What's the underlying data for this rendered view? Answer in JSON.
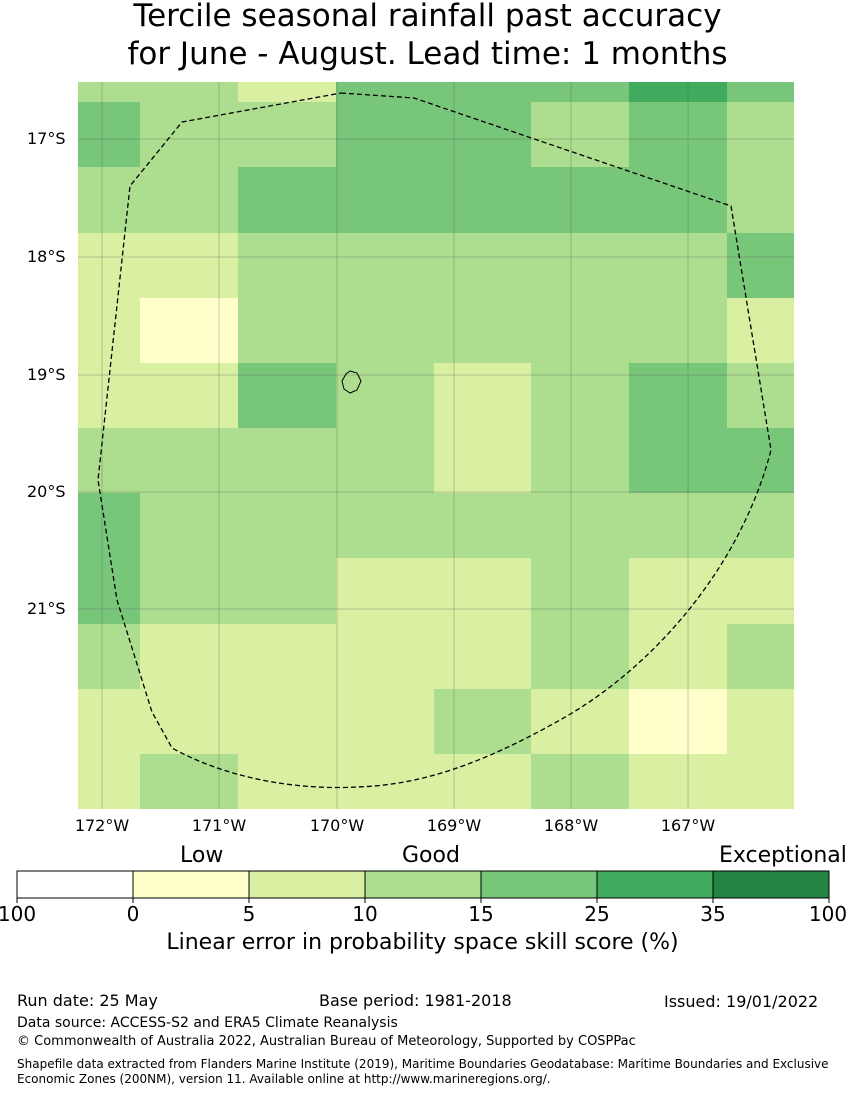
{
  "title": {
    "line1": "Tercile seasonal rainfall past accuracy",
    "line2": "for June - August. Lead time: 1 months"
  },
  "map": {
    "lat_labels": [
      "17°S",
      "18°S",
      "19°S",
      "20°S",
      "21°S"
    ],
    "lon_labels": [
      "172°W",
      "171°W",
      "170°W",
      "169°W",
      "168°W",
      "167°W"
    ],
    "grid_values": [
      [
        15,
        15,
        10,
        25,
        25,
        25,
        35,
        25
      ],
      [
        25,
        15,
        15,
        25,
        25,
        15,
        25,
        15
      ],
      [
        15,
        15,
        25,
        25,
        25,
        25,
        25,
        15
      ],
      [
        10,
        10,
        15,
        15,
        15,
        15,
        15,
        25
      ],
      [
        10,
        5,
        15,
        15,
        15,
        15,
        15,
        10
      ],
      [
        10,
        10,
        25,
        15,
        10,
        15,
        25,
        15
      ],
      [
        15,
        15,
        15,
        15,
        10,
        15,
        25,
        25
      ],
      [
        25,
        15,
        15,
        15,
        15,
        15,
        15,
        15
      ],
      [
        25,
        15,
        15,
        10,
        10,
        15,
        10,
        10
      ],
      [
        15,
        10,
        10,
        10,
        10,
        15,
        10,
        15
      ],
      [
        10,
        10,
        10,
        10,
        15,
        10,
        5,
        10
      ],
      [
        10,
        15,
        10,
        10,
        10,
        15,
        10,
        10
      ]
    ]
  },
  "legend": {
    "categories": [
      "Low",
      "Good",
      "Exceptional"
    ],
    "ticks": [
      "100",
      "0",
      "5",
      "10",
      "15",
      "25",
      "35",
      "100"
    ],
    "colors": [
      "#ffffff",
      "#ffffcc",
      "#d9f0a3",
      "#addd8e",
      "#78c679",
      "#41ab5d",
      "#238443"
    ],
    "label": "Linear error in probability space skill score (%)"
  },
  "footer": {
    "run_date": "Run date: 25 May",
    "base_period": "Base period: 1981-2018",
    "issued": "Issued: 19/01/2022",
    "data_source": "Data source: ACCESS-S2 and ERA5 Climate Reanalysis",
    "copyright": "© Commonwealth of Australia 2022, Australian Bureau of Meteorology, Supported by COSPPac",
    "shapefile_line1": "Shapefile data extracted from Flanders Marine Institute (2019), Maritime Boundaries Geodatabase: Maritime Boundaries and Exclusive",
    "shapefile_line2": "Economic Zones (200NM), version 11. Available online at http://www.marineregions.org/."
  }
}
